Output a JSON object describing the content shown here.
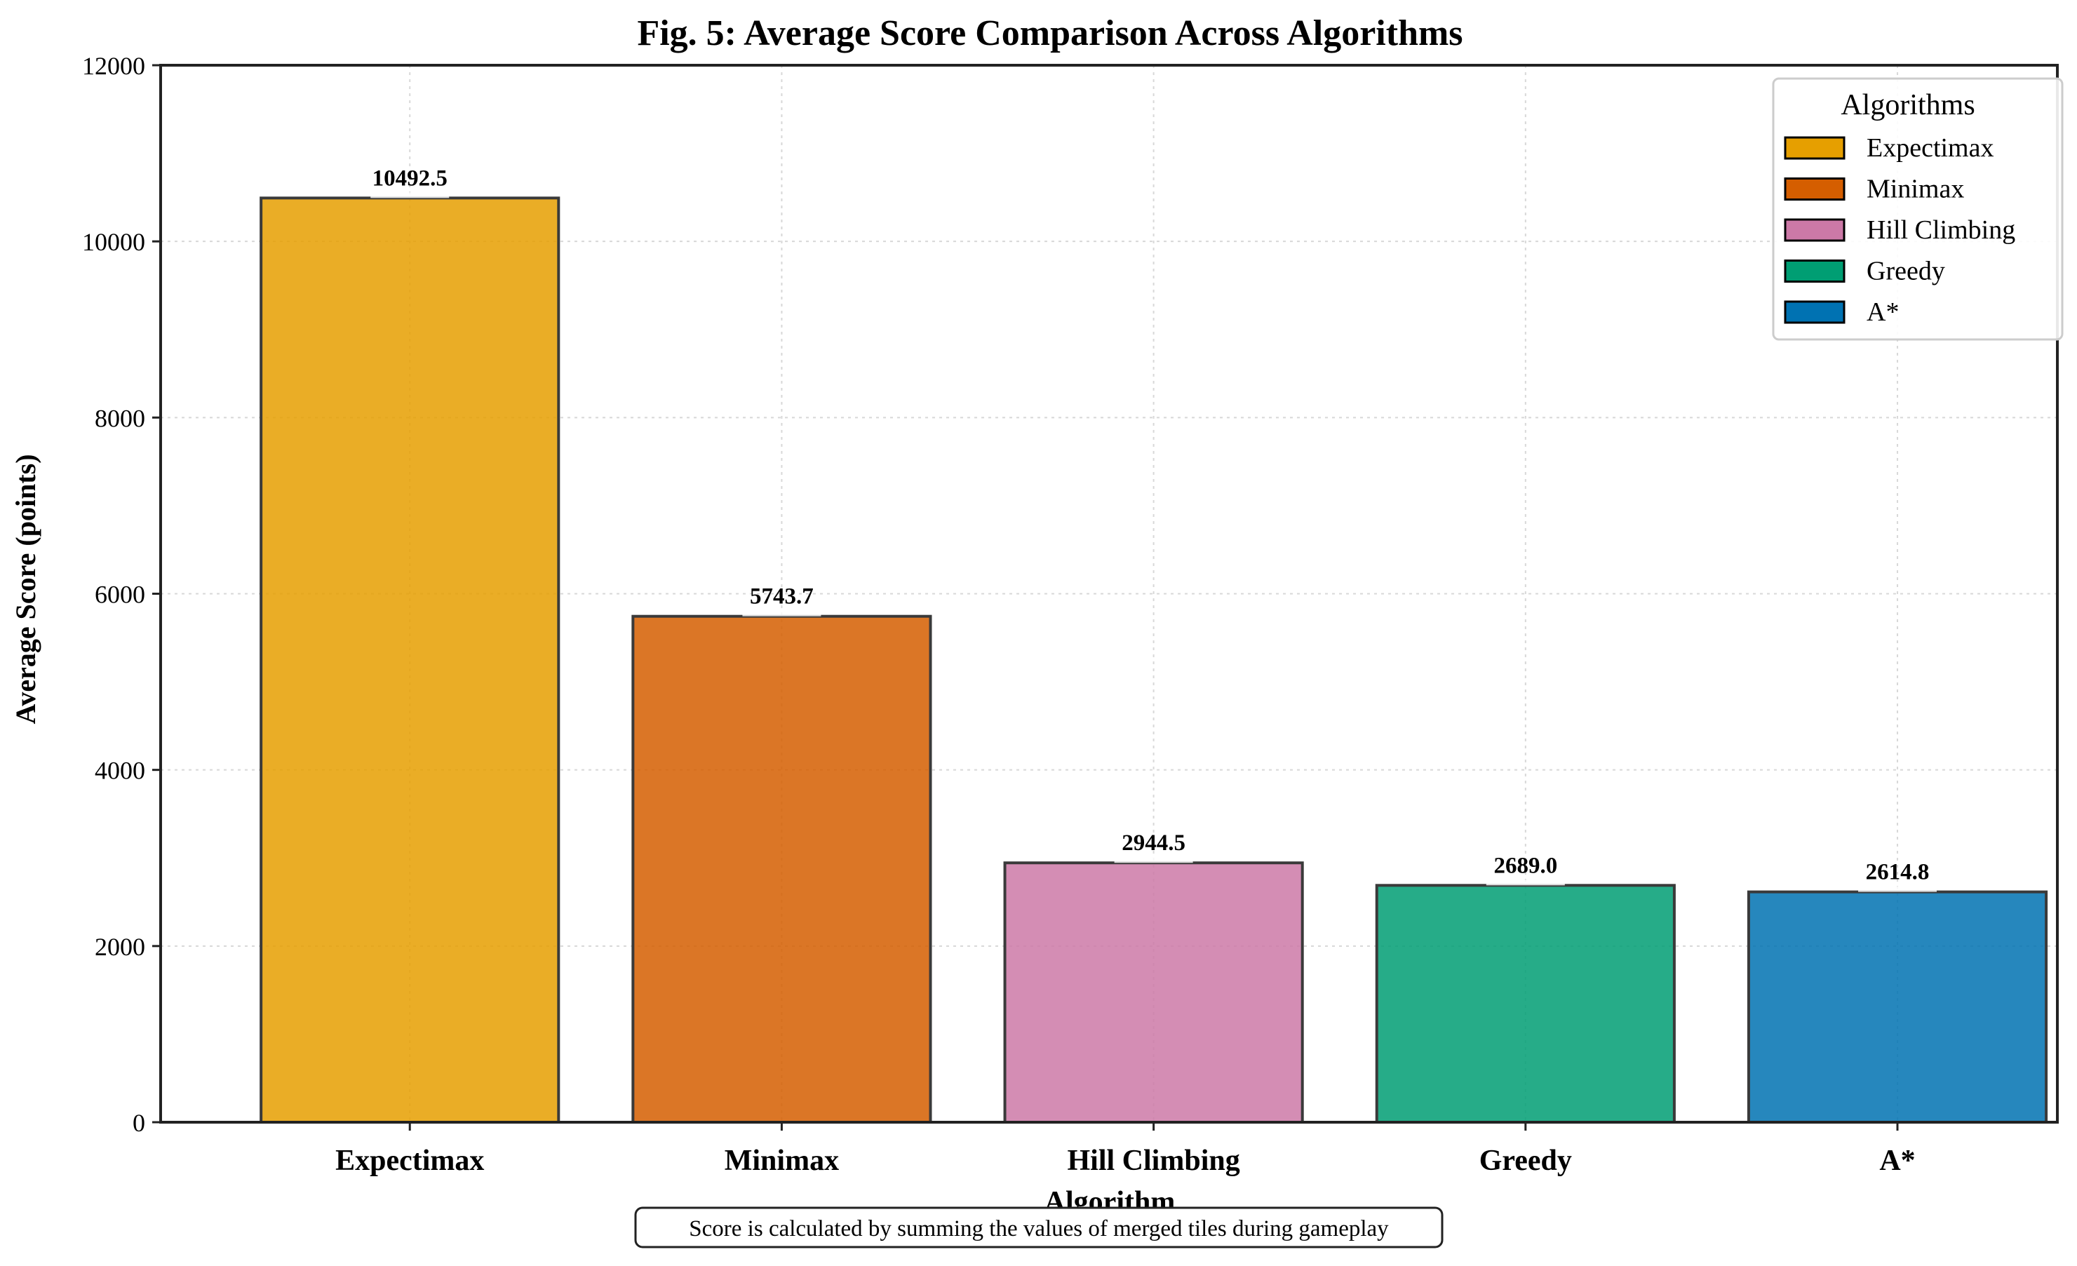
{
  "chart_data": {
    "type": "bar",
    "title": "Fig. 5: Average Score Comparison Across Algorithms",
    "xlabel": "Algorithm",
    "ylabel": "Average Score (points)",
    "categories": [
      "Expectimax",
      "Minimax",
      "Hill Climbing",
      "Greedy",
      "A*"
    ],
    "values": [
      10492.5,
      5743.7,
      2944.5,
      2689.0,
      2614.8
    ],
    "value_labels": [
      "10492.5",
      "5743.7",
      "2944.5",
      "2689.0",
      "2614.8"
    ],
    "colors": [
      "#E69F00",
      "#D55E00",
      "#CC79A7",
      "#009E73",
      "#0072B2"
    ],
    "ylim": [
      0,
      12000
    ],
    "yticks": [
      0,
      2000,
      4000,
      6000,
      8000,
      10000,
      12000
    ],
    "grid": true,
    "legend": {
      "title": "Algorithms",
      "placement": "top-right",
      "entries": [
        "Expectimax",
        "Minimax",
        "Hill Climbing",
        "Greedy",
        "A*"
      ]
    },
    "footnote": "Score is calculated by summing the values of merged tiles during gameplay"
  }
}
